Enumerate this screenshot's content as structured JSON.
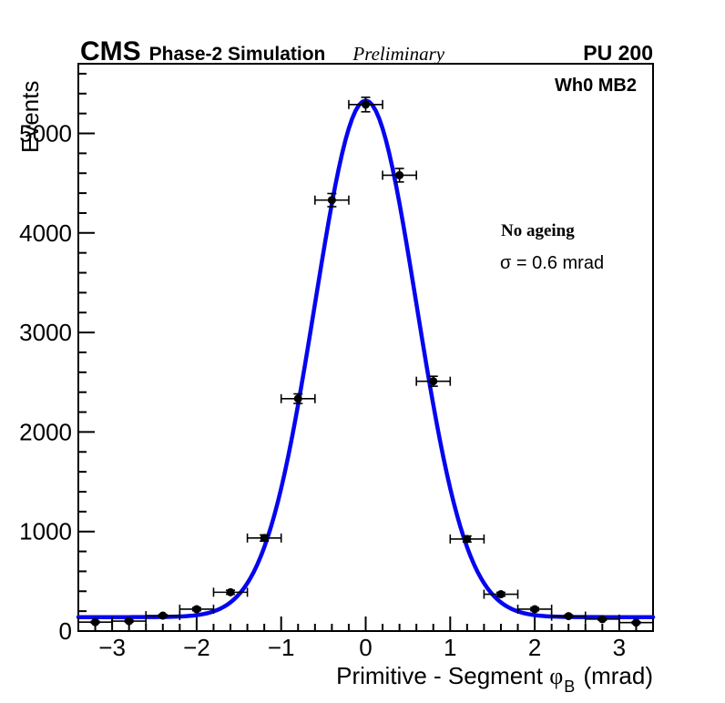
{
  "header": {
    "experiment": "CMS",
    "label": "Phase-2 Simulation",
    "sublabel": "Preliminary",
    "right_label": "PU 200"
  },
  "plot": {
    "corner_label": "Wh0 MB2",
    "annotation_line1": "No ageing",
    "annotation_line2": "σ = 0.6 mrad",
    "xlabel_parts": {
      "prefix": "Primitive - Segment ",
      "symbol": "φ",
      "subscript": "B",
      "suffix": " (mrad)"
    }
  },
  "chart_data": {
    "type": "scatter",
    "title": "",
    "xlabel": "Primitive - Segment φ_B (mrad)",
    "ylabel": "Events",
    "xlim": [
      -3.4,
      3.4
    ],
    "ylim": [
      0,
      5700
    ],
    "grid": false,
    "legend_position": "none",
    "x_major_ticks": [
      -3,
      -2,
      -1,
      0,
      1,
      2,
      3
    ],
    "x_tick_labels": [
      "−3",
      "−2",
      "−1",
      "0",
      "1",
      "2",
      "3"
    ],
    "x_minor_step": 0.2,
    "y_major_ticks": [
      0,
      1000,
      2000,
      3000,
      4000,
      5000
    ],
    "y_tick_labels": [
      "0",
      "1000",
      "2000",
      "3000",
      "4000",
      "5000"
    ],
    "y_minor_step": 200,
    "marker_color": "#000000",
    "points": {
      "x": [
        -3.2,
        -2.8,
        -2.4,
        -2.0,
        -1.6,
        -1.2,
        -0.8,
        -0.4,
        0.0,
        0.4,
        0.8,
        1.2,
        1.6,
        2.0,
        2.4,
        2.8,
        3.2
      ],
      "y": [
        90,
        100,
        155,
        220,
        390,
        935,
        2335,
        4330,
        5290,
        4580,
        2510,
        925,
        370,
        220,
        150,
        120,
        85
      ],
      "yerr": [
        9,
        10,
        12,
        15,
        20,
        31,
        48,
        66,
        73,
        68,
        50,
        30,
        19,
        15,
        12,
        11,
        9
      ],
      "xerr": 0.2
    },
    "fit": {
      "shape": "gaussian+constant",
      "amplitude": 5190,
      "mean": 0,
      "sigma": 0.6,
      "baseline": 140,
      "color": "#0505f0",
      "line_width": 4.5
    }
  }
}
